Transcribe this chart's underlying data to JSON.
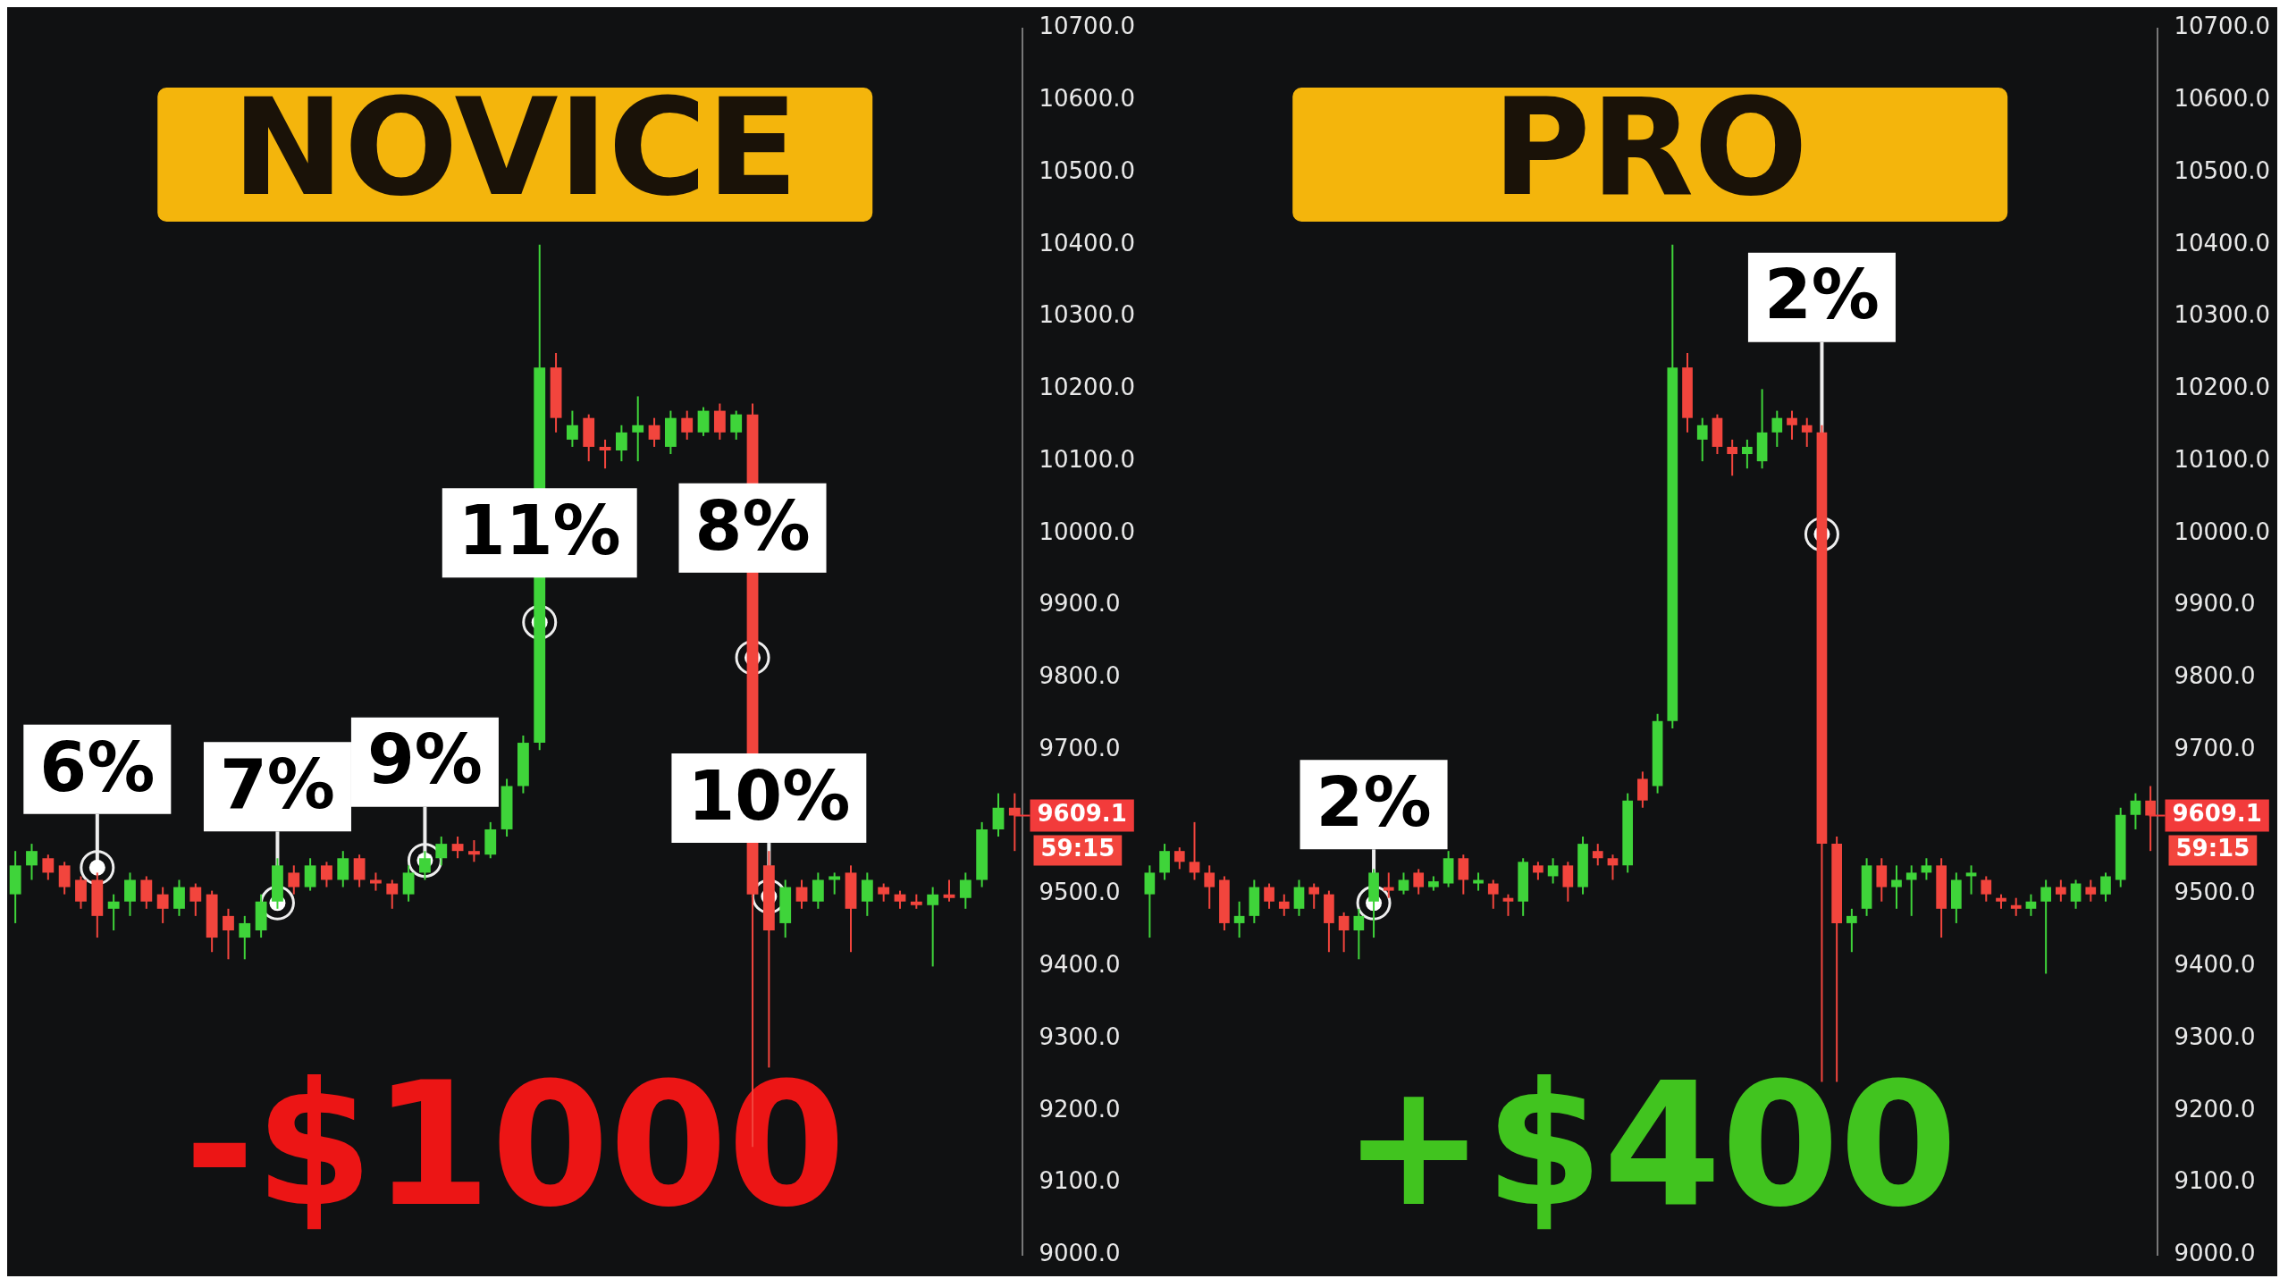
{
  "chart_data": [
    {
      "type": "candlestick",
      "title": "NOVICE",
      "subtitle": "-$1000",
      "categories": [
        null,
        null,
        null,
        null,
        null,
        null,
        null,
        null,
        null,
        null,
        null,
        null,
        null,
        null,
        null,
        null,
        null,
        null,
        null,
        null,
        null,
        null,
        null,
        null,
        null,
        null,
        null,
        null,
        null,
        null,
        null,
        null,
        null,
        null,
        null,
        null,
        null,
        null,
        null,
        null,
        null,
        null,
        null,
        null,
        null,
        null,
        null,
        null,
        null,
        null,
        null,
        null,
        null,
        null,
        null,
        null,
        null,
        null,
        null,
        null,
        null,
        null
      ],
      "ohlc": [
        [
          9500,
          9560,
          9460,
          9540
        ],
        [
          9540,
          9570,
          9520,
          9560
        ],
        [
          9550,
          9555,
          9520,
          9530
        ],
        [
          9540,
          9545,
          9500,
          9510
        ],
        [
          9520,
          9525,
          9480,
          9490
        ],
        [
          9520,
          9530,
          9440,
          9470
        ],
        [
          9480,
          9500,
          9450,
          9490
        ],
        [
          9490,
          9530,
          9470,
          9520
        ],
        [
          9520,
          9525,
          9480,
          9490
        ],
        [
          9500,
          9510,
          9460,
          9480
        ],
        [
          9480,
          9520,
          9470,
          9510
        ],
        [
          9510,
          9515,
          9470,
          9490
        ],
        [
          9500,
          9505,
          9420,
          9440
        ],
        [
          9470,
          9480,
          9410,
          9450
        ],
        [
          9440,
          9470,
          9410,
          9460
        ],
        [
          9450,
          9500,
          9440,
          9490
        ],
        [
          9490,
          9550,
          9480,
          9540
        ],
        [
          9530,
          9540,
          9500,
          9510
        ],
        [
          9510,
          9550,
          9505,
          9540
        ],
        [
          9540,
          9545,
          9510,
          9520
        ],
        [
          9520,
          9560,
          9510,
          9550
        ],
        [
          9550,
          9555,
          9510,
          9520
        ],
        [
          9520,
          9530,
          9505,
          9515
        ],
        [
          9515,
          9520,
          9480,
          9500
        ],
        [
          9500,
          9540,
          9490,
          9530
        ],
        [
          9530,
          9560,
          9520,
          9550
        ],
        [
          9550,
          9580,
          9540,
          9570
        ],
        [
          9570,
          9580,
          9550,
          9560
        ],
        [
          9560,
          9575,
          9545,
          9555
        ],
        [
          9555,
          9600,
          9550,
          9590
        ],
        [
          9590,
          9660,
          9580,
          9650
        ],
        [
          9650,
          9720,
          9640,
          9710
        ],
        [
          9710,
          10400,
          9700,
          10230
        ],
        [
          10230,
          10250,
          10140,
          10160
        ],
        [
          10130,
          10170,
          10120,
          10150
        ],
        [
          10160,
          10165,
          10100,
          10120
        ],
        [
          10120,
          10130,
          10090,
          10115
        ],
        [
          10115,
          10150,
          10100,
          10140
        ],
        [
          10140,
          10190,
          10100,
          10150
        ],
        [
          10150,
          10160,
          10120,
          10130
        ],
        [
          10120,
          10170,
          10110,
          10160
        ],
        [
          10160,
          10170,
          10130,
          10140
        ],
        [
          10140,
          10175,
          10135,
          10170
        ],
        [
          10170,
          10180,
          10130,
          10140
        ],
        [
          10140,
          10170,
          10130,
          10165
        ],
        [
          10165,
          10180,
          9150,
          9500
        ],
        [
          9540,
          9560,
          9260,
          9450
        ],
        [
          9460,
          9520,
          9440,
          9510
        ],
        [
          9510,
          9520,
          9480,
          9490
        ],
        [
          9490,
          9530,
          9480,
          9520
        ],
        [
          9520,
          9530,
          9500,
          9525
        ],
        [
          9530,
          9540,
          9420,
          9480
        ],
        [
          9490,
          9530,
          9470,
          9520
        ],
        [
          9510,
          9515,
          9490,
          9500
        ],
        [
          9500,
          9505,
          9480,
          9490
        ],
        [
          9490,
          9500,
          9480,
          9485
        ],
        [
          9485,
          9510,
          9400,
          9500
        ],
        [
          9500,
          9520,
          9490,
          9495
        ],
        [
          9495,
          9530,
          9480,
          9520
        ],
        [
          9520,
          9600,
          9510,
          9590
        ],
        [
          9590,
          9640,
          9580,
          9620
        ],
        [
          9620,
          9640,
          9560,
          9609.1
        ]
      ],
      "ylim": [
        9000,
        10700
      ],
      "yticks": [
        {
          "value": 9000,
          "label": "9000.0"
        },
        {
          "value": 9100,
          "label": "9100.0"
        },
        {
          "value": 9200,
          "label": "9200.0"
        },
        {
          "value": 9300,
          "label": "9300.0"
        },
        {
          "value": 9400,
          "label": "9400.0"
        },
        {
          "value": 9500,
          "label": "9500.0"
        },
        {
          "value": 9700,
          "label": "9700.0"
        },
        {
          "value": 9800,
          "label": "9800.0"
        },
        {
          "value": 9900,
          "label": "9900.0"
        },
        {
          "value": 10000,
          "label": "10000.0"
        },
        {
          "value": 10100,
          "label": "10100.0"
        },
        {
          "value": 10200,
          "label": "10200.0"
        },
        {
          "value": 10300,
          "label": "10300.0"
        },
        {
          "value": 10400,
          "label": "10400.0"
        },
        {
          "value": 10500,
          "label": "10500.0"
        },
        {
          "value": 10600,
          "label": "10600.0"
        },
        {
          "value": 10700,
          "label": "10700.0"
        }
      ],
      "ref_lines": [
        {
          "axis": "y",
          "value": 9609.1,
          "label": "9609.1",
          "color": "#f23b3b"
        }
      ],
      "annotations": [
        {
          "text": "6%",
          "y": 9537
        },
        {
          "text": "7%",
          "y": 9488
        },
        {
          "text": "9%",
          "y": 9547
        },
        {
          "text": "11%",
          "y": 9877
        },
        {
          "text": "8%",
          "y": 9828
        },
        {
          "text": "10%",
          "y": 9497
        },
        {
          "text": "59:15"
        }
      ],
      "grid": false,
      "legend": false,
      "tick_labels": "y"
    },
    {
      "type": "candlestick",
      "title": "PRO",
      "subtitle": "+$400",
      "categories": [
        null,
        null,
        null,
        null,
        null,
        null,
        null,
        null,
        null,
        null,
        null,
        null,
        null,
        null,
        null,
        null,
        null,
        null,
        null,
        null,
        null,
        null,
        null,
        null,
        null,
        null,
        null,
        null,
        null,
        null,
        null,
        null,
        null,
        null,
        null,
        null,
        null,
        null,
        null,
        null,
        null,
        null,
        null,
        null,
        null,
        null,
        null,
        null,
        null,
        null,
        null,
        null,
        null,
        null,
        null,
        null,
        null,
        null,
        null,
        null,
        null,
        null,
        null,
        null,
        null,
        null,
        null,
        null
      ],
      "ohlc": [
        [
          9500,
          9540,
          9440,
          9530
        ],
        [
          9530,
          9570,
          9520,
          9560
        ],
        [
          9560,
          9565,
          9535,
          9545
        ],
        [
          9545,
          9600,
          9520,
          9530
        ],
        [
          9530,
          9540,
          9480,
          9510
        ],
        [
          9520,
          9525,
          9450,
          9460
        ],
        [
          9460,
          9490,
          9440,
          9470
        ],
        [
          9470,
          9520,
          9460,
          9510
        ],
        [
          9510,
          9515,
          9480,
          9490
        ],
        [
          9490,
          9500,
          9470,
          9480
        ],
        [
          9480,
          9520,
          9470,
          9510
        ],
        [
          9510,
          9515,
          9480,
          9500
        ],
        [
          9500,
          9505,
          9420,
          9460
        ],
        [
          9470,
          9475,
          9420,
          9450
        ],
        [
          9450,
          9480,
          9410,
          9470
        ],
        [
          9490,
          9535,
          9440,
          9530
        ],
        [
          9510,
          9530,
          9495,
          9505
        ],
        [
          9505,
          9530,
          9500,
          9520
        ],
        [
          9530,
          9535,
          9500,
          9510
        ],
        [
          9510,
          9525,
          9505,
          9518
        ],
        [
          9515,
          9560,
          9510,
          9550
        ],
        [
          9550,
          9555,
          9500,
          9520
        ],
        [
          9515,
          9530,
          9505,
          9518
        ],
        [
          9515,
          9520,
          9480,
          9500
        ],
        [
          9495,
          9500,
          9470,
          9490
        ],
        [
          9490,
          9550,
          9470,
          9545
        ],
        [
          9540,
          9545,
          9520,
          9530
        ],
        [
          9525,
          9550,
          9515,
          9540
        ],
        [
          9540,
          9545,
          9490,
          9510
        ],
        [
          9510,
          9580,
          9500,
          9570
        ],
        [
          9560,
          9570,
          9540,
          9550
        ],
        [
          9550,
          9555,
          9520,
          9540
        ],
        [
          9540,
          9640,
          9530,
          9630
        ],
        [
          9660,
          9670,
          9620,
          9630
        ],
        [
          9650,
          9750,
          9640,
          9740
        ],
        [
          9740,
          10400,
          9730,
          10230
        ],
        [
          10230,
          10250,
          10140,
          10160
        ],
        [
          10130,
          10160,
          10100,
          10150
        ],
        [
          10160,
          10165,
          10110,
          10120
        ],
        [
          10120,
          10130,
          10080,
          10110
        ],
        [
          10110,
          10130,
          10090,
          10120
        ],
        [
          10100,
          10200,
          10090,
          10140
        ],
        [
          10140,
          10170,
          10120,
          10160
        ],
        [
          10160,
          10170,
          10130,
          10150
        ],
        [
          10150,
          10160,
          10120,
          10140
        ],
        [
          10140,
          10150,
          9240,
          9570
        ],
        [
          9570,
          9580,
          9240,
          9460
        ],
        [
          9460,
          9480,
          9420,
          9470
        ],
        [
          9480,
          9550,
          9470,
          9540
        ],
        [
          9540,
          9550,
          9490,
          9510
        ],
        [
          9510,
          9540,
          9480,
          9520
        ],
        [
          9520,
          9540,
          9470,
          9530
        ],
        [
          9530,
          9550,
          9520,
          9540
        ],
        [
          9540,
          9550,
          9440,
          9480
        ],
        [
          9480,
          9530,
          9460,
          9520
        ],
        [
          9525,
          9540,
          9500,
          9530
        ],
        [
          9520,
          9525,
          9490,
          9500
        ],
        [
          9495,
          9500,
          9480,
          9490
        ],
        [
          9485,
          9495,
          9470,
          9480
        ],
        [
          9480,
          9500,
          9470,
          9490
        ],
        [
          9490,
          9520,
          9390,
          9510
        ],
        [
          9510,
          9520,
          9490,
          9500
        ],
        [
          9490,
          9520,
          9480,
          9515
        ],
        [
          9510,
          9520,
          9490,
          9500
        ],
        [
          9500,
          9530,
          9490,
          9525
        ],
        [
          9520,
          9620,
          9510,
          9610
        ],
        [
          9610,
          9640,
          9590,
          9630
        ],
        [
          9630,
          9650,
          9560,
          9609.1
        ]
      ],
      "ylim": [
        9000,
        10700
      ],
      "yticks": [
        {
          "value": 9000,
          "label": "9000.0"
        },
        {
          "value": 9100,
          "label": "9100.0"
        },
        {
          "value": 9200,
          "label": "9200.0"
        },
        {
          "value": 9300,
          "label": "9300.0"
        },
        {
          "value": 9400,
          "label": "9400.0"
        },
        {
          "value": 9500,
          "label": "9500.0"
        },
        {
          "value": 9700,
          "label": "9700.0"
        },
        {
          "value": 9800,
          "label": "9800.0"
        },
        {
          "value": 9900,
          "label": "9900.0"
        },
        {
          "value": 10000,
          "label": "10000.0"
        },
        {
          "value": 10100,
          "label": "10100.0"
        },
        {
          "value": 10200,
          "label": "10200.0"
        },
        {
          "value": 10300,
          "label": "10300.0"
        },
        {
          "value": 10400,
          "label": "10400.0"
        },
        {
          "value": 10500,
          "label": "10500.0"
        },
        {
          "value": 10600,
          "label": "10600.0"
        },
        {
          "value": 10700,
          "label": "10700.0"
        }
      ],
      "ref_lines": [
        {
          "axis": "y",
          "value": 9609.1,
          "label": "9609.1",
          "color": "#f23b3b"
        }
      ],
      "annotations": [
        {
          "text": "2%",
          "y": 9488
        },
        {
          "text": "2%",
          "y": 9999
        },
        {
          "text": "59:15"
        }
      ],
      "grid": false,
      "legend": false,
      "tick_labels": "y"
    }
  ]
}
